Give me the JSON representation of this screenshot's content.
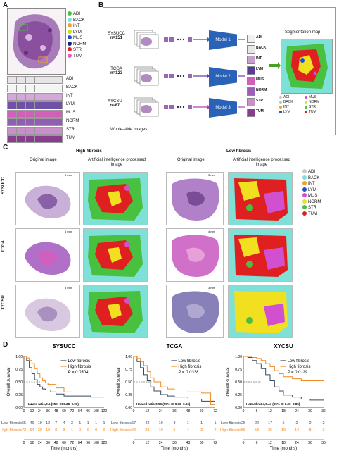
{
  "panel_labels": {
    "a": "A",
    "b": "B",
    "c": "C",
    "d": "D"
  },
  "tissue_classes": [
    {
      "code": "ADI",
      "color": "#c8c8c8"
    },
    {
      "code": "BACK",
      "color": "#7ee0d6"
    },
    {
      "code": "INT",
      "color": "#f0a030"
    },
    {
      "code": "LYM",
      "color": "#2050c8"
    },
    {
      "code": "MUS",
      "color": "#d050d0"
    },
    {
      "code": "NORM",
      "color": "#1a1a80"
    },
    {
      "code": "STR",
      "color": "#48c040"
    },
    {
      "code": "TUM",
      "color": "#e02020"
    }
  ],
  "panel_b": {
    "cohorts": [
      {
        "name": "SYSUCC",
        "n": "n=151",
        "model": "Model 1"
      },
      {
        "name": "TCGA",
        "n": "n=123",
        "model": "Model 2"
      },
      {
        "name": "XYCSU",
        "n": "n=87",
        "model": "Model 3"
      }
    ],
    "wsi_label": "Whole-slide images",
    "seg_title": "Segmentation map",
    "seg_legend": [
      "ADI",
      "MUS",
      "BACK",
      "NORM",
      "INT",
      "STR",
      "LYM",
      "TUM"
    ],
    "tile_labels": [
      "ADI",
      "BACK",
      "INT",
      "LYM",
      "MUS",
      "NORM",
      "STR",
      "TUM"
    ]
  },
  "panel_c": {
    "high_title": "High fibrosis",
    "low_title": "Low fibrosis",
    "orig_label": "Original image",
    "ai_label": "Artificial intelligence processed image",
    "rows": [
      "SYSUCC",
      "TCGA",
      "XYCSU"
    ],
    "scale_labels": [
      "3 mm",
      "4 mm",
      "3 mm",
      "3 mm",
      "4 mm",
      "3 mm"
    ]
  },
  "chart_data": [
    {
      "type": "line",
      "title": "SYSUCC",
      "xlabel": "Time (months)",
      "ylabel": "Overall survival",
      "xticks": [
        "0",
        "12",
        "24",
        "36",
        "48",
        "60",
        "72",
        "84",
        "96",
        "108",
        "120"
      ],
      "yticks": [
        "0.00",
        "0.25",
        "0.50",
        "0.75",
        "1.00"
      ],
      "xlim": [
        0,
        120
      ],
      "ylim": [
        0,
        1
      ],
      "series": [
        {
          "name": "Low fibrosis",
          "color": "#3a4a5c",
          "x": [
            0,
            4,
            8,
            12,
            16,
            20,
            24,
            28,
            32,
            40,
            48,
            60,
            84,
            100,
            120
          ],
          "y": [
            1.0,
            0.92,
            0.78,
            0.66,
            0.54,
            0.45,
            0.4,
            0.36,
            0.34,
            0.3,
            0.26,
            0.22,
            0.22,
            0.2,
            0.2
          ]
        },
        {
          "name": "High fibrosis",
          "color": "#f08a24",
          "x": [
            0,
            4,
            8,
            12,
            16,
            20,
            24,
            28,
            32,
            36,
            48,
            60,
            72
          ],
          "y": [
            1.0,
            0.97,
            0.92,
            0.86,
            0.76,
            0.66,
            0.58,
            0.52,
            0.48,
            0.45,
            0.38,
            0.3,
            0.3
          ]
        }
      ],
      "p_value": "P = 0.0304",
      "hr": "Hazard ratio,0.6 (95% CI 0.38~0.96)",
      "risk_table": {
        "Low fibrosis": [
          "65",
          "46",
          "19",
          "12",
          "7",
          "4",
          "3",
          "1",
          "1",
          "1",
          "1"
        ],
        "High fibrosis": [
          "72",
          "54",
          "30",
          "18",
          "8",
          "3",
          "1",
          "0",
          "0",
          "0",
          "0"
        ]
      }
    },
    {
      "type": "line",
      "title": "TCGA",
      "xlabel": "Time (months)",
      "ylabel": "Overall survival",
      "xticks": [
        "0",
        "12",
        "24",
        "36",
        "48",
        "60",
        "72"
      ],
      "yticks": [
        "0.00",
        "0.25",
        "0.50",
        "0.75",
        "1.00"
      ],
      "xlim": [
        0,
        72
      ],
      "ylim": [
        0,
        1
      ],
      "series": [
        {
          "name": "Low fibrosis",
          "color": "#3a4a5c",
          "x": [
            0,
            3,
            6,
            9,
            12,
            15,
            18,
            24,
            30,
            36,
            48,
            60,
            72
          ],
          "y": [
            1.0,
            0.9,
            0.78,
            0.64,
            0.52,
            0.4,
            0.32,
            0.25,
            0.22,
            0.2,
            0.16,
            0.12,
            0.12
          ]
        },
        {
          "name": "High fibrosis",
          "color": "#f08a24",
          "x": [
            0,
            3,
            6,
            9,
            12,
            15,
            18,
            24,
            30,
            36,
            48,
            60,
            68,
            72
          ],
          "y": [
            1.0,
            0.96,
            0.9,
            0.82,
            0.7,
            0.58,
            0.5,
            0.4,
            0.36,
            0.34,
            0.3,
            0.28,
            0.05,
            0.05
          ]
        }
      ],
      "p_value": "P = 0.0338",
      "hr": "Hazard ratio,0.59 (95% CI 0.36~0.96)",
      "risk_table": {
        "Low fibrosis": [
          "67",
          "42",
          "10",
          "3",
          "1",
          "1",
          "1"
        ],
        "High fibrosis": [
          "49",
          "33",
          "10",
          "5",
          "4",
          "3",
          "2"
        ]
      }
    },
    {
      "type": "line",
      "title": "XYCSU",
      "xlabel": "Time (months)",
      "ylabel": "Overall survival",
      "xticks": [
        "0",
        "6",
        "12",
        "18",
        "24",
        "30",
        "36"
      ],
      "yticks": [
        "0.00",
        "0.25",
        "0.50",
        "0.75",
        "1.00"
      ],
      "xlim": [
        0,
        36
      ],
      "ylim": [
        0,
        1
      ],
      "series": [
        {
          "name": "Low fibrosis",
          "color": "#3a4a5c",
          "x": [
            0,
            2,
            4,
            6,
            8,
            10,
            12,
            14,
            16,
            18,
            22,
            26,
            30,
            36
          ],
          "y": [
            1.0,
            0.98,
            0.92,
            0.86,
            0.76,
            0.64,
            0.52,
            0.4,
            0.32,
            0.24,
            0.2,
            0.16,
            0.14,
            0.14
          ]
        },
        {
          "name": "High fibrosis",
          "color": "#f08a24",
          "x": [
            0,
            2,
            4,
            6,
            8,
            10,
            12,
            14,
            16,
            18,
            22,
            26,
            30,
            36
          ],
          "y": [
            1.0,
            1.0,
            0.98,
            0.96,
            0.92,
            0.86,
            0.8,
            0.72,
            0.66,
            0.6,
            0.56,
            0.52,
            0.52,
            0.52
          ]
        }
      ],
      "p_value": "P = 0.0119",
      "hr": "Hazard ratio,0.44 (95% CI 0.23~0.85)",
      "risk_table": {
        "Low fibrosis": [
          "25",
          "22",
          "17",
          "6",
          "2",
          "2",
          "2"
        ],
        "High fibrosis": [
          "55",
          "53",
          "36",
          "19",
          "14",
          "8",
          "3"
        ]
      }
    }
  ]
}
